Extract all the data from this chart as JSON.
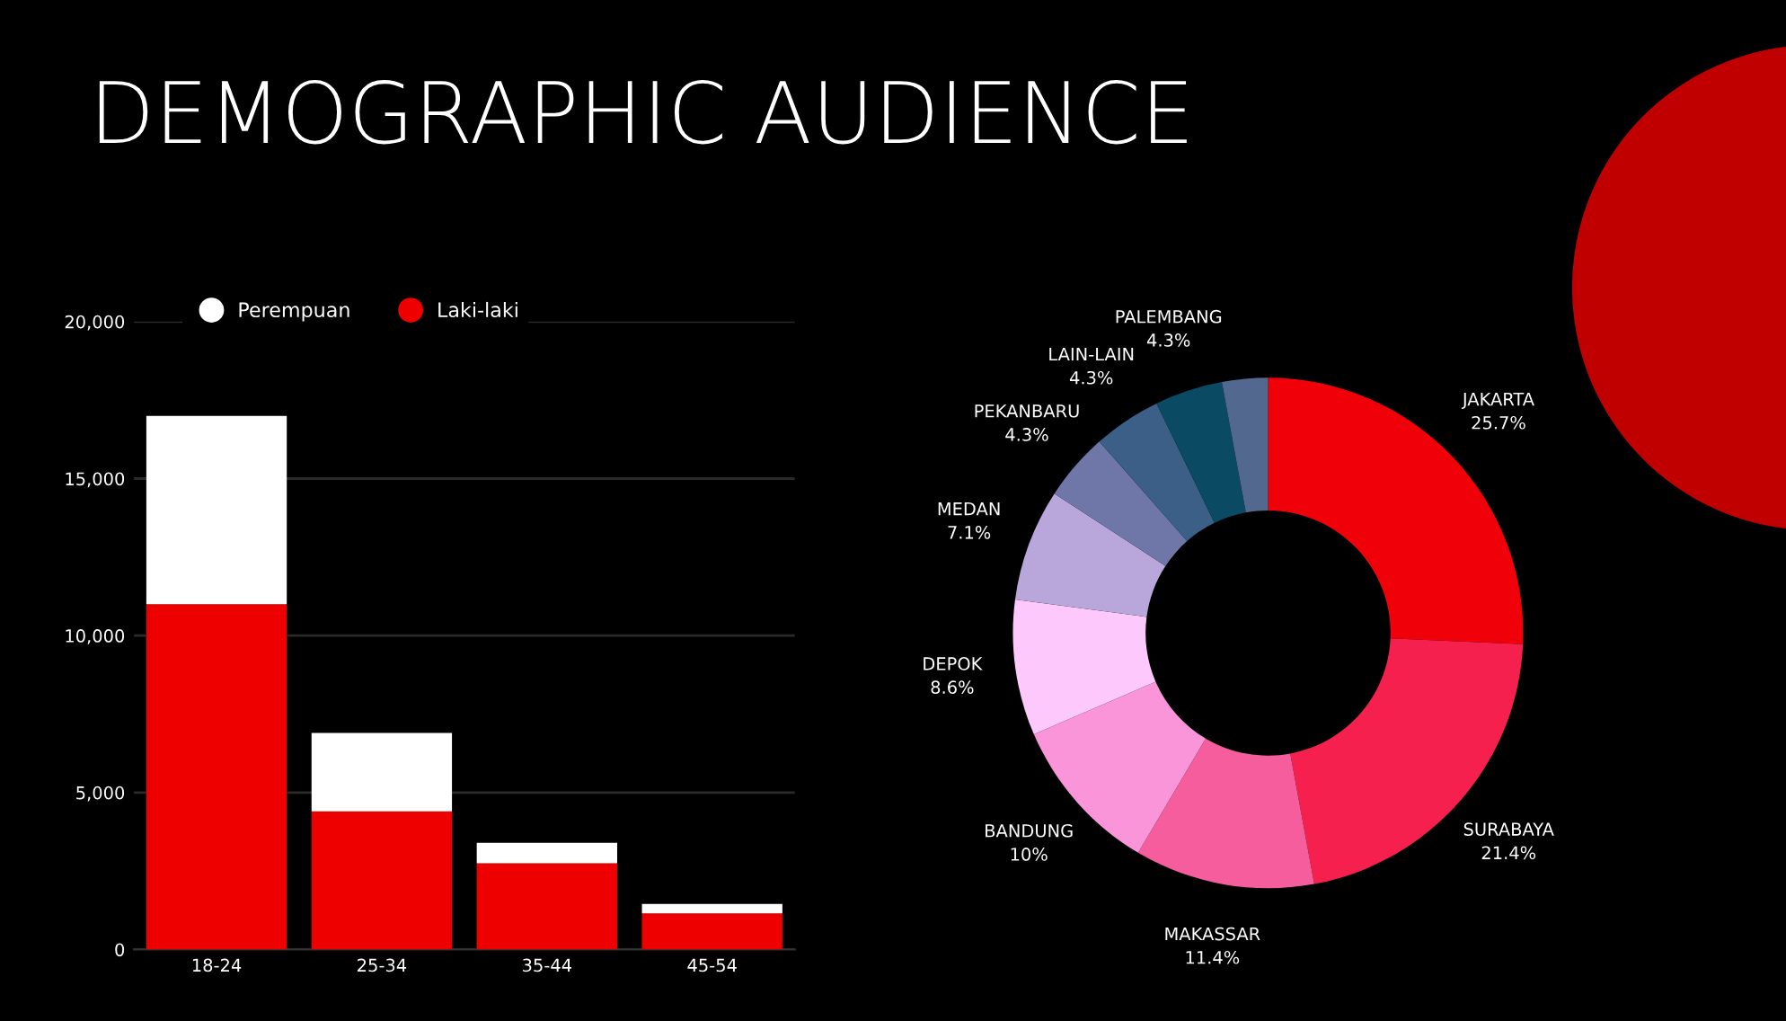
{
  "chart_data": [
    {
      "type": "bar",
      "title": "DEMOGRAPHIC AUDIENCE",
      "categories": [
        "18-24",
        "25-34",
        "35-44",
        "45-54"
      ],
      "stacked": true,
      "series": [
        {
          "name": "Laki-laki",
          "color": "#ee0000",
          "values": [
            11000,
            4400,
            2750,
            1150
          ]
        },
        {
          "name": "Perempuan",
          "color": "#ffffff",
          "values": [
            6000,
            2500,
            650,
            300
          ]
        }
      ],
      "ylim": [
        0,
        20000
      ],
      "yticks": [
        0,
        {
          "value": 5000,
          "label": "5,000"
        },
        {
          "value": 10000,
          "label": "10,000"
        },
        {
          "value": 15000,
          "label": "15,000"
        },
        {
          "value": 20000,
          "label": "20,000"
        }
      ],
      "grid": "y",
      "legend": "top left",
      "marker": "circle"
    },
    {
      "type": "donut",
      "categories": [
        "JAKARTA",
        "SURABAYA",
        "MAKASSAR",
        "BANDUNG",
        "DEPOK",
        "MEDAN",
        "PEKANBARU",
        "LAIN-LAIN",
        "PALEMBANG",
        null
      ],
      "values": [
        25.7,
        21.4,
        11.4,
        10,
        8.6,
        7.1,
        4.3,
        4.3,
        4.3,
        2.9
      ],
      "value_labels": [
        "25.7%",
        "21.4%",
        "11.4%",
        "10%",
        "8.6%",
        "7.1%",
        "4.3%",
        "4.3%",
        "4.3%",
        null
      ],
      "colors": [
        "#f00008",
        "#f5204e",
        "#f65d9c",
        "#f995d8",
        "#fdc8fb",
        "#b9a6db",
        "#6f77a8",
        "#3b5f86",
        "#0b4a63",
        "#52688f"
      ]
    }
  ]
}
